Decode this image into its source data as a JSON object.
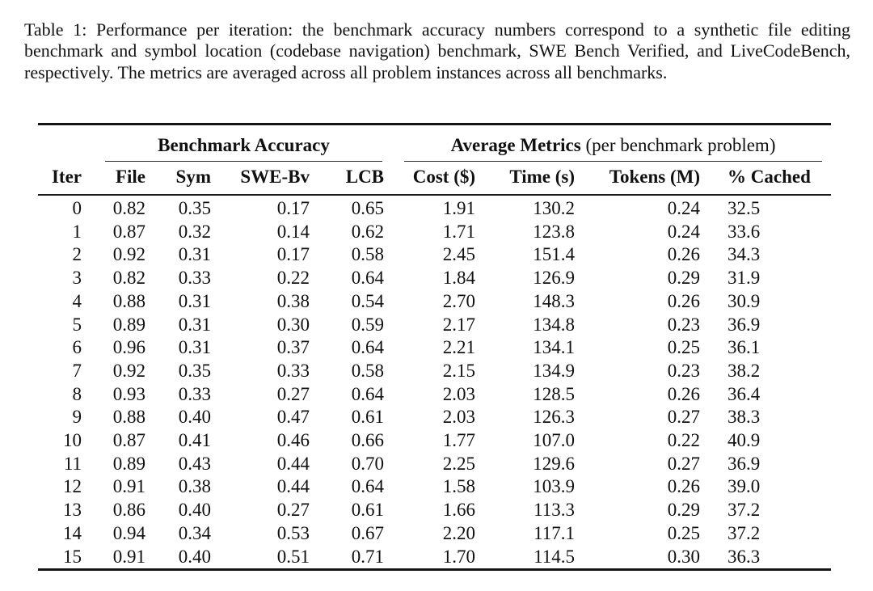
{
  "page": {
    "background_color": "#ffffff",
    "text_color": "#111111",
    "rule_color": "#151515"
  },
  "caption": {
    "text": "Table 1: Performance per iteration: the benchmark accuracy numbers correspond to a synthetic file editing benchmark and symbol location (codebase navigation) benchmark, SWE Bench Verified, and LiveCodeBench, respectively. The metrics are averaged across all problem instances across all benchmarks."
  },
  "table": {
    "group_headers": [
      {
        "bold": "Benchmark Accuracy",
        "normal": ""
      },
      {
        "bold": "Average Metrics",
        "normal": " (per benchmark problem)"
      }
    ],
    "columns": [
      "Iter",
      "File",
      "Sym",
      "SWE-Bv",
      "LCB",
      "Cost ($)",
      "Time (s)",
      "Tokens (M)",
      "% Cached"
    ],
    "rows": [
      [
        "0",
        "0.82",
        "0.35",
        "0.17",
        "0.65",
        "1.91",
        "130.2",
        "0.24",
        "32.5"
      ],
      [
        "1",
        "0.87",
        "0.32",
        "0.14",
        "0.62",
        "1.71",
        "123.8",
        "0.24",
        "33.6"
      ],
      [
        "2",
        "0.92",
        "0.31",
        "0.17",
        "0.58",
        "2.45",
        "151.4",
        "0.26",
        "34.3"
      ],
      [
        "3",
        "0.82",
        "0.33",
        "0.22",
        "0.64",
        "1.84",
        "126.9",
        "0.29",
        "31.9"
      ],
      [
        "4",
        "0.88",
        "0.31",
        "0.38",
        "0.54",
        "2.70",
        "148.3",
        "0.26",
        "30.9"
      ],
      [
        "5",
        "0.89",
        "0.31",
        "0.30",
        "0.59",
        "2.17",
        "134.8",
        "0.23",
        "36.9"
      ],
      [
        "6",
        "0.96",
        "0.31",
        "0.37",
        "0.64",
        "2.21",
        "134.1",
        "0.25",
        "36.1"
      ],
      [
        "7",
        "0.92",
        "0.35",
        "0.33",
        "0.58",
        "2.15",
        "134.9",
        "0.23",
        "38.2"
      ],
      [
        "8",
        "0.93",
        "0.33",
        "0.27",
        "0.64",
        "2.03",
        "128.5",
        "0.26",
        "36.4"
      ],
      [
        "9",
        "0.88",
        "0.40",
        "0.47",
        "0.61",
        "2.03",
        "126.3",
        "0.27",
        "38.3"
      ],
      [
        "10",
        "0.87",
        "0.41",
        "0.46",
        "0.66",
        "1.77",
        "107.0",
        "0.22",
        "40.9"
      ],
      [
        "11",
        "0.89",
        "0.43",
        "0.44",
        "0.70",
        "2.25",
        "129.6",
        "0.27",
        "36.9"
      ],
      [
        "12",
        "0.91",
        "0.38",
        "0.44",
        "0.64",
        "1.58",
        "103.9",
        "0.26",
        "39.0"
      ],
      [
        "13",
        "0.86",
        "0.40",
        "0.27",
        "0.61",
        "1.66",
        "113.3",
        "0.29",
        "37.2"
      ],
      [
        "14",
        "0.94",
        "0.34",
        "0.53",
        "0.67",
        "2.20",
        "117.1",
        "0.25",
        "37.2"
      ],
      [
        "15",
        "0.91",
        "0.40",
        "0.51",
        "0.71",
        "1.70",
        "114.5",
        "0.30",
        "36.3"
      ]
    ]
  }
}
